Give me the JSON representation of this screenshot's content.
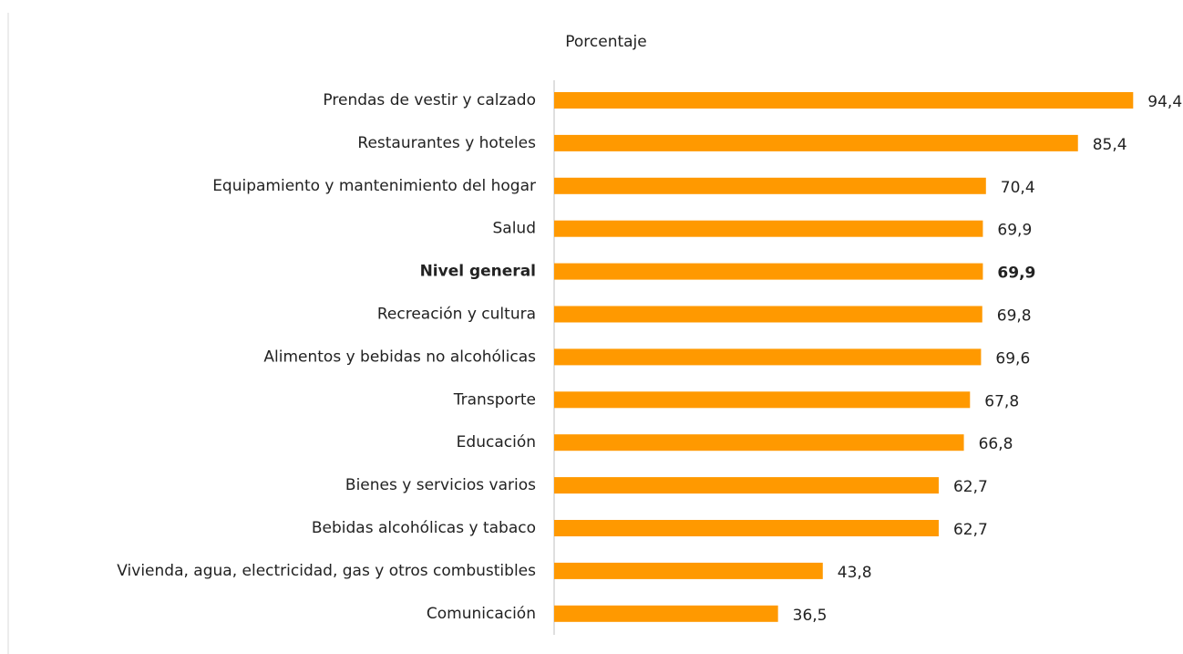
{
  "chart_data": {
    "type": "bar",
    "orientation": "horizontal",
    "subtitle": "Porcentaje",
    "categories": [
      "Prendas de vestir y calzado",
      "Restaurantes y hoteles",
      "Equipamiento y mantenimiento del hogar",
      "Salud",
      "Nivel general",
      "Recreación y cultura",
      "Alimentos y bebidas no alcohólicas",
      "Transporte",
      "Educación",
      "Bienes y servicios varios",
      "Bebidas alcohólicas y tabaco",
      "Vivienda, agua, electricidad, gas y otros combustibles",
      "Comunicación"
    ],
    "values": [
      94.4,
      85.4,
      70.4,
      69.9,
      69.9,
      69.8,
      69.6,
      67.8,
      66.8,
      62.7,
      62.7,
      43.8,
      36.5
    ],
    "value_labels": [
      "94,4",
      "85,4",
      "70,4",
      "69,9",
      "69,9",
      "69,8",
      "69,6",
      "67,8",
      "66,8",
      "62,7",
      "62,7",
      "43,8",
      "36,5"
    ],
    "color": "#ff9900",
    "emphasis_index": 4,
    "xlim": [
      0,
      100
    ],
    "grid": false
  }
}
